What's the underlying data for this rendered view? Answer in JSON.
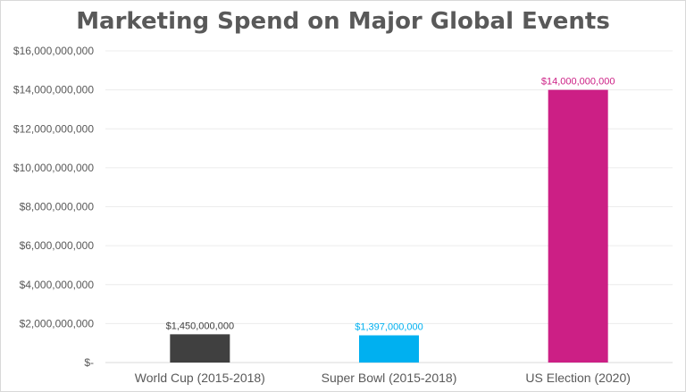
{
  "chart_data": {
    "type": "bar",
    "title": "Marketing Spend on Major Global Events",
    "xlabel": "",
    "ylabel": "",
    "ylim": [
      0,
      16000000000
    ],
    "y_tick_labels": [
      "$-",
      "$2,000,000,000",
      "$4,000,000,000",
      "$6,000,000,000",
      "$8,000,000,000",
      "$10,000,000,000",
      "$12,000,000,000",
      "$14,000,000,000",
      "$16,000,000,000"
    ],
    "grid": true,
    "legend": "none",
    "categories": [
      "World Cup (2015-2018)",
      "Super Bowl (2015-2018)",
      "US Election (2020)"
    ],
    "values": [
      1450000000,
      1397000000,
      14000000000
    ],
    "data_labels": [
      "$1,450,000,000",
      "$1,397,000,000",
      "$14,000,000,000"
    ],
    "colors": [
      "#404040",
      "#00b0f0",
      "#cc1f85"
    ],
    "data_label_colors": [
      "#404040",
      "#00b0f0",
      "#cc1f85"
    ]
  }
}
